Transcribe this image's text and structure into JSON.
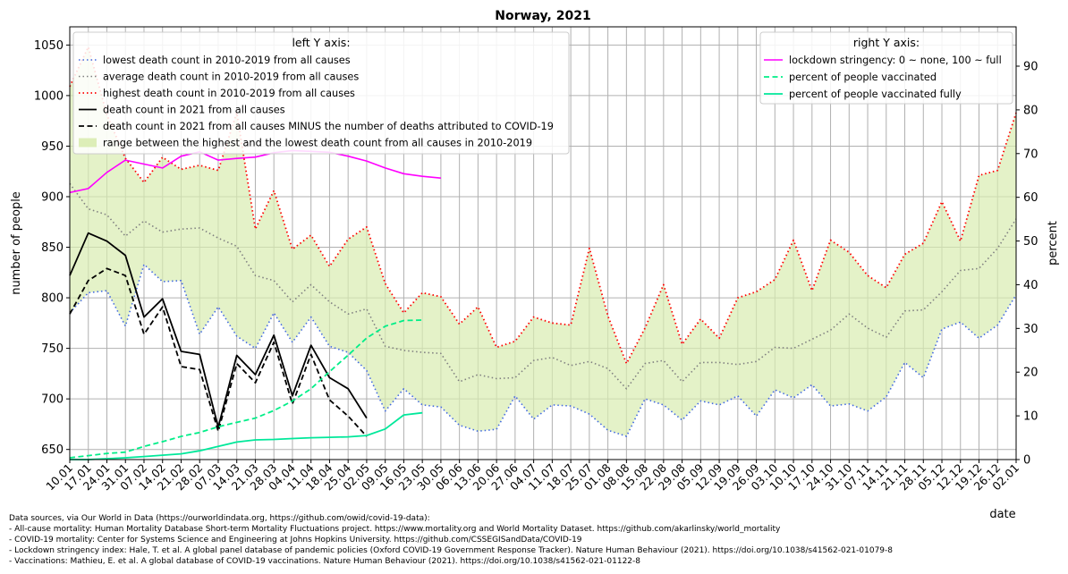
{
  "chart_data": {
    "type": "line",
    "title": "Norway, 2021",
    "xlabel": "date",
    "ylabel_left": "number of people",
    "ylabel_right": "percent",
    "ylim_left": [
      640,
      1068
    ],
    "ylim_right": [
      0,
      99
    ],
    "yticks_left": [
      650,
      700,
      750,
      800,
      850,
      900,
      950,
      1000,
      1050
    ],
    "yticks_right": [
      0,
      10,
      20,
      30,
      40,
      50,
      60,
      70,
      80,
      90
    ],
    "grid": true,
    "categories": [
      "10.01",
      "17.01",
      "24.01",
      "31.01",
      "07.02",
      "14.02",
      "21.02",
      "28.02",
      "07.03",
      "14.03",
      "21.03",
      "28.03",
      "04.04",
      "11.04",
      "18.04",
      "25.04",
      "02.05",
      "09.05",
      "16.05",
      "23.05",
      "30.05",
      "06.06",
      "13.06",
      "20.06",
      "27.06",
      "04.07",
      "11.07",
      "18.07",
      "25.07",
      "01.08",
      "08.08",
      "15.08",
      "22.08",
      "29.08",
      "05.09",
      "12.09",
      "19.09",
      "26.09",
      "03.10",
      "10.10",
      "17.10",
      "24.10",
      "31.10",
      "07.11",
      "14.11",
      "21.11",
      "28.11",
      "05.12",
      "12.12",
      "19.12",
      "26.12",
      "02.01"
    ],
    "legend_left": {
      "title": "left Y axis:",
      "entries": [
        "lowest death count in 2010-2019 from all causes",
        "average death count in 2010-2019 from all causes",
        "highest death count in 2010-2019 from all causes",
        "death count in 2021 from all causes",
        "death count in 2021 from all causes MINUS the number of deaths attributed to COVID-19",
        "range between the highest and the lowest death count from all causes in 2010-2019"
      ]
    },
    "legend_right": {
      "title": "right Y axis:",
      "entries": [
        "lockdown stringency: 0 ~ none, 100 ~ full",
        "percent of people vaccinated",
        "percent of people vaccinated fully"
      ]
    },
    "series_left": [
      {
        "name": "lowest",
        "color": "#4169e1",
        "values": [
          785,
          805,
          807,
          772,
          833,
          816,
          817,
          764,
          791,
          762,
          750,
          785,
          756,
          781,
          752,
          746,
          728,
          688,
          710,
          694,
          692,
          674,
          668,
          670,
          703,
          680,
          694,
          693,
          685,
          669,
          663,
          700,
          694,
          679,
          698,
          694,
          703,
          683,
          709,
          701,
          714,
          693,
          695,
          688,
          702,
          736,
          721,
          769,
          776,
          760,
          773,
          803
        ]
      },
      {
        "name": "average",
        "color": "#808080",
        "values": [
          913,
          888,
          882,
          861,
          876,
          865,
          868,
          869,
          859,
          851,
          822,
          817,
          796,
          813,
          796,
          784,
          789,
          752,
          748,
          746,
          745,
          717,
          724,
          720,
          721,
          738,
          741,
          733,
          737,
          730,
          710,
          735,
          738,
          717,
          736,
          736,
          734,
          737,
          751,
          750,
          759,
          768,
          784,
          770,
          761,
          787,
          788,
          806,
          827,
          829,
          849,
          878
        ]
      },
      {
        "name": "highest",
        "color": "#ff0000",
        "values": [
          1009,
          1048,
          981,
          938,
          914,
          939,
          927,
          931,
          926,
          983,
          868,
          906,
          848,
          862,
          831,
          858,
          870,
          814,
          785,
          805,
          801,
          774,
          791,
          751,
          757,
          781,
          775,
          773,
          849,
          782,
          735,
          770,
          813,
          754,
          779,
          760,
          800,
          806,
          818,
          857,
          807,
          857,
          845,
          822,
          810,
          843,
          854,
          895,
          856,
          921,
          926,
          983
        ]
      },
      {
        "name": "death_2021",
        "color": "#000000",
        "values": [
          822,
          864,
          856,
          842,
          781,
          799,
          747,
          744,
          672,
          743,
          724,
          763,
          703,
          753,
          721,
          710,
          681
        ]
      },
      {
        "name": "death_2021_minus_covid",
        "color": "#000000",
        "values": [
          784,
          817,
          829,
          822,
          764,
          791,
          732,
          729,
          668,
          735,
          716,
          756,
          695,
          744,
          699,
          683,
          663
        ]
      }
    ],
    "series_right": [
      {
        "name": "lockdown_stringency",
        "color": "#ff00ff",
        "values": [
          61.1,
          62.0,
          65.7,
          68.5,
          67.6,
          66.7,
          69.4,
          70.4,
          68.5,
          68.9,
          69.2,
          70.2,
          70.7,
          70.5,
          70.3,
          69.4,
          68.3,
          66.7,
          65.4,
          64.8,
          64.4
        ]
      },
      {
        "name": "vaccinated",
        "color": "#00ee88",
        "values": [
          0.4,
          0.9,
          1.4,
          1.7,
          3.0,
          4.1,
          5.3,
          6.2,
          7.5,
          8.5,
          9.5,
          11.2,
          13.4,
          16.2,
          20.1,
          23.9,
          27.8,
          30.5,
          31.8,
          31.9
        ]
      },
      {
        "name": "vaccinated_fully",
        "color": "#00e89a",
        "values": [
          0,
          0,
          0.2,
          0.4,
          0.7,
          1.0,
          1.3,
          2.0,
          3.0,
          4.0,
          4.5,
          4.6,
          4.8,
          5.0,
          5.1,
          5.2,
          5.5,
          7.0,
          10.2,
          10.7
        ]
      }
    ],
    "sources": [
      "Data sources, via Our World in Data (https://ourworldindata.org, https://github.com/owid/covid-19-data):",
      "- All-cause mortality: Human Mortality Database Short-term Mortality Fluctuations project. https://www.mortality.org and World Mortality Dataset. https://github.com/akarlinsky/world_mortality",
      "- COVID-19 mortality: Center for Systems Science and Engineering at Johns Hopkins University. https://github.com/CSSEGISandData/COVID-19",
      "- Lockdown stringency index: Hale, T. et al. A global panel database of pandemic policies (Oxford COVID-19 Government Response Tracker). Nature Human Behaviour (2021). https://doi.org/10.1038/s41562-021-01079-8",
      "- Vaccinations: Mathieu, E. et al. A global database of COVID-19 vaccinations. Nature Human Behaviour (2021). https://doi.org/10.1038/s41562-021-01122-8"
    ]
  }
}
